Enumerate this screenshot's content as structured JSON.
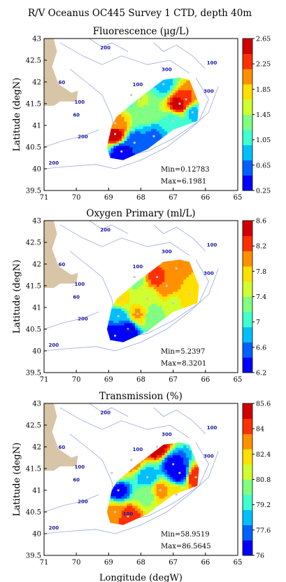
{
  "figure_title": "R/V Oceanus OC445 Survey 1 CTD, depth 40m",
  "colors": {
    "land": "#d8c5a8",
    "contour": "#9aa8e0",
    "station": "#c8c8c8",
    "jet": [
      "#0000ff",
      "#0060ff",
      "#00bfff",
      "#40ffd0",
      "#80ff80",
      "#d0ff30",
      "#ffe000",
      "#ff9000",
      "#ff3000",
      "#d00000"
    ]
  },
  "chart_data": [
    {
      "type": "heatmap",
      "title": "Fluorescence (µg/L)",
      "xlabel": "",
      "ylabel": "Latitude (degN)",
      "xlim": [
        -71,
        -65
      ],
      "ylim": [
        39.5,
        43
      ],
      "x_ticks": [
        "71",
        "70",
        "69",
        "68",
        "67",
        "66",
        "65"
      ],
      "y_ticks": [
        "39.5",
        "40",
        "40.5",
        "41",
        "41.5",
        "42",
        "42.5",
        "43"
      ],
      "isobath_labels": [
        "200",
        "100",
        "60",
        "200",
        "300",
        "100",
        "300",
        "100",
        "60",
        "100",
        "200"
      ],
      "colorbar_ticks": [
        "0.25",
        "0.65",
        "1.05",
        "1.45",
        "1.85",
        "2.25",
        "2.65"
      ],
      "vmin_label": 0.25,
      "vmax_label": 2.65,
      "stats": {
        "min": "Min=0.12783",
        "max": "Max=6.1981"
      },
      "data": [
        {
          "lon": -68.3,
          "lat": 41.7,
          "v": 0.9
        },
        {
          "lon": -67.3,
          "lat": 41.95,
          "v": 0.9
        },
        {
          "lon": -66.8,
          "lat": 41.5,
          "v": 2.6
        },
        {
          "lon": -66.6,
          "lat": 41.6,
          "v": 2.2
        },
        {
          "lon": -68.8,
          "lat": 40.8,
          "v": 2.6
        },
        {
          "lon": -68.8,
          "lat": 41.05,
          "v": 2.0
        },
        {
          "lon": -67.8,
          "lat": 41.3,
          "v": 1.4
        },
        {
          "lon": -68.0,
          "lat": 41.6,
          "v": 1.5
        },
        {
          "lon": -67.0,
          "lat": 41.1,
          "v": 1.1
        },
        {
          "lon": -68.2,
          "lat": 40.6,
          "v": 0.5
        },
        {
          "lon": -68.6,
          "lat": 40.4,
          "v": 0.3
        },
        {
          "lon": -66.4,
          "lat": 41.3,
          "v": 0.9
        },
        {
          "lon": -67.6,
          "lat": 40.75,
          "v": 0.7
        }
      ]
    },
    {
      "type": "heatmap",
      "title": "Oxygen Primary (ml/L)",
      "xlabel": "",
      "ylabel": "Latitude (degN)",
      "xlim": [
        -71,
        -65
      ],
      "ylim": [
        39.5,
        43
      ],
      "x_ticks": [
        "71",
        "70",
        "69",
        "68",
        "67",
        "66",
        "65"
      ],
      "y_ticks": [
        "39.5",
        "40",
        "40.5",
        "41",
        "41.5",
        "42",
        "42.5",
        "43"
      ],
      "isobath_labels": [
        "200",
        "100",
        "60",
        "200",
        "300",
        "100",
        "300",
        "100",
        "60",
        "100",
        "200"
      ],
      "colorbar_ticks": [
        "6.2",
        "6.6",
        "7",
        "7.4",
        "7.8",
        "8.2",
        "8.6"
      ],
      "vmin_label": 6.2,
      "vmax_label": 8.6,
      "stats": {
        "min": "Min=5.2397",
        "max": "Max=8.3201"
      },
      "data": [
        {
          "lon": -67.5,
          "lat": 41.7,
          "v": 8.2
        },
        {
          "lon": -67.2,
          "lat": 41.5,
          "v": 8.1
        },
        {
          "lon": -66.9,
          "lat": 41.9,
          "v": 7.9
        },
        {
          "lon": -68.6,
          "lat": 41.2,
          "v": 7.7
        },
        {
          "lon": -67.8,
          "lat": 41.2,
          "v": 7.4
        },
        {
          "lon": -68.2,
          "lat": 41.7,
          "v": 7.3
        },
        {
          "lon": -68.7,
          "lat": 40.8,
          "v": 6.7
        },
        {
          "lon": -68.4,
          "lat": 40.5,
          "v": 6.3
        },
        {
          "lon": -68.8,
          "lat": 40.35,
          "v": 6.2
        },
        {
          "lon": -67.6,
          "lat": 40.8,
          "v": 7.2
        },
        {
          "lon": -66.5,
          "lat": 41.3,
          "v": 7.8
        },
        {
          "lon": -68.1,
          "lat": 40.85,
          "v": 7.9
        },
        {
          "lon": -67.0,
          "lat": 41.1,
          "v": 7.6
        }
      ]
    },
    {
      "type": "heatmap",
      "title": "Transmission (%)",
      "xlabel": "Longitude (degW)",
      "ylabel": "Latitude (degN)",
      "xlim": [
        -71,
        -65
      ],
      "ylim": [
        39.5,
        43
      ],
      "x_ticks": [
        "71",
        "70",
        "69",
        "68",
        "67",
        "66",
        "65"
      ],
      "y_ticks": [
        "39.5",
        "40",
        "40.5",
        "41",
        "41.5",
        "42",
        "42.5",
        "43"
      ],
      "isobath_labels": [
        "200",
        "100",
        "60",
        "200",
        "300",
        "100",
        "300",
        "100",
        "60",
        "100",
        "200"
      ],
      "colorbar_ticks": [
        "76",
        "77.6",
        "79.2",
        "80.8",
        "82.4",
        "84",
        "85.6"
      ],
      "vmin_label": 76,
      "vmax_label": 85.6,
      "stats": {
        "min": "Min=58.9519",
        "max": "Max=86.5645"
      },
      "data": [
        {
          "lon": -67.0,
          "lat": 41.6,
          "v": 76.5
        },
        {
          "lon": -66.8,
          "lat": 41.4,
          "v": 76.0
        },
        {
          "lon": -67.8,
          "lat": 41.3,
          "v": 78.0
        },
        {
          "lon": -68.7,
          "lat": 41.0,
          "v": 76.5
        },
        {
          "lon": -68.8,
          "lat": 40.5,
          "v": 83.0
        },
        {
          "lon": -68.4,
          "lat": 40.4,
          "v": 84.5
        },
        {
          "lon": -68.3,
          "lat": 41.7,
          "v": 84.0
        },
        {
          "lon": -67.5,
          "lat": 42.0,
          "v": 85.5
        },
        {
          "lon": -66.3,
          "lat": 41.3,
          "v": 84.5
        },
        {
          "lon": -67.8,
          "lat": 40.9,
          "v": 80.5
        },
        {
          "lon": -67.4,
          "lat": 41.0,
          "v": 83.0
        },
        {
          "lon": -68.9,
          "lat": 41.4,
          "v": 84.0
        },
        {
          "lon": -66.9,
          "lat": 40.9,
          "v": 82.5
        }
      ]
    }
  ]
}
